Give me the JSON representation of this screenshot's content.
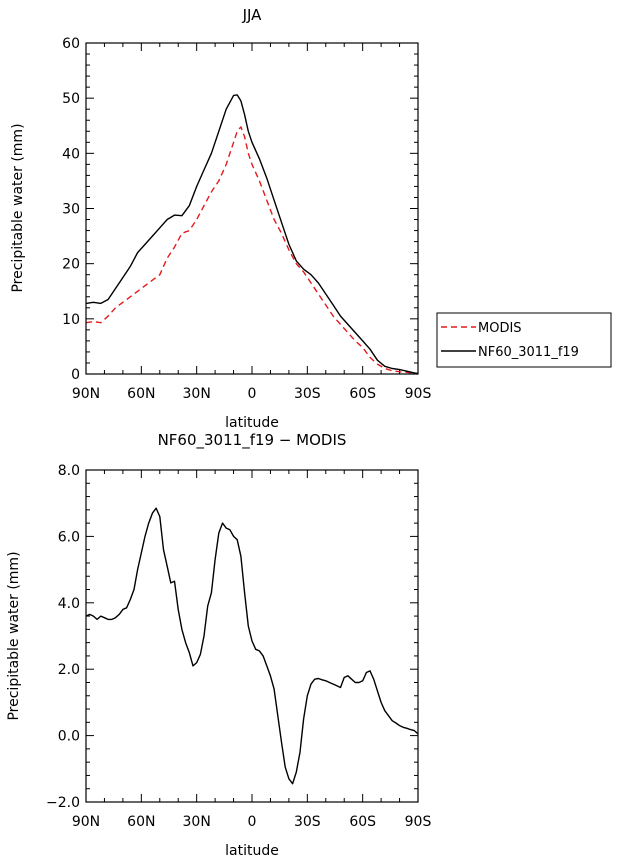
{
  "chart_data": [
    {
      "type": "line",
      "title": "JJA",
      "xlabel": "latitude",
      "ylabel": "Precipitable water (mm)",
      "xlim": [
        90,
        -90
      ],
      "ylim": [
        0,
        60
      ],
      "x_ticks": [
        90,
        60,
        30,
        0,
        -30,
        -60,
        -90
      ],
      "x_tick_labels": [
        "90N",
        "60N",
        "30N",
        "0",
        "30S",
        "60S",
        "90S"
      ],
      "y_ticks": [
        0,
        10,
        20,
        30,
        40,
        50,
        60
      ],
      "y_tick_labels": [
        "0",
        "10",
        "20",
        "30",
        "40",
        "50",
        "60"
      ],
      "legend": {
        "placement": "right, outside plot",
        "entries": [
          "MODIS",
          "NF60_3011_f19"
        ]
      },
      "series": [
        {
          "name": "MODIS",
          "color": "#e41a1c",
          "dash": "dashed",
          "x": [
            90,
            86,
            82,
            78,
            74,
            70,
            66,
            62,
            58,
            54,
            50,
            46,
            42,
            38,
            34,
            30,
            26,
            22,
            18,
            14,
            10,
            8,
            6,
            4,
            2,
            0,
            -4,
            -8,
            -12,
            -16,
            -20,
            -24,
            -28,
            -32,
            -36,
            -40,
            -44,
            -48,
            -52,
            -56,
            -60,
            -64,
            -68,
            -72,
            -76,
            -80,
            -84,
            -88,
            -90
          ],
          "y": [
            9.3,
            9.5,
            9.3,
            10.5,
            12,
            13,
            14,
            15,
            16,
            17,
            18,
            21,
            23,
            25.5,
            26,
            28,
            30.5,
            33,
            35,
            38,
            42,
            44,
            44.8,
            43,
            40,
            38,
            35,
            31.5,
            28,
            25.5,
            22.5,
            20,
            18.5,
            16.5,
            14.5,
            12.5,
            10.5,
            9,
            7.5,
            6,
            4.8,
            3,
            1.8,
            1,
            0.6,
            0.4,
            0.3,
            0.1,
            0
          ]
        },
        {
          "name": "NF60_3011_f19",
          "color": "#000000",
          "dash": "solid",
          "x": [
            90,
            86,
            82,
            78,
            74,
            70,
            66,
            62,
            58,
            54,
            50,
            46,
            42,
            38,
            34,
            30,
            26,
            22,
            18,
            14,
            10,
            8,
            6,
            4,
            2,
            0,
            -4,
            -8,
            -12,
            -16,
            -20,
            -24,
            -28,
            -32,
            -36,
            -40,
            -44,
            -48,
            -52,
            -56,
            -60,
            -64,
            -68,
            -72,
            -76,
            -80,
            -84,
            -88,
            -90
          ],
          "y": [
            12.8,
            13,
            12.8,
            13.5,
            15.5,
            17.5,
            19.5,
            22,
            23.5,
            25,
            26.5,
            28,
            28.8,
            28.7,
            30.5,
            34,
            37,
            40,
            44,
            48,
            50.5,
            50.6,
            49.5,
            47,
            44,
            42,
            39,
            35.5,
            31.5,
            27.5,
            23.5,
            20.5,
            19,
            18,
            16.5,
            14.5,
            12.5,
            10.5,
            9,
            7.5,
            6,
            4.5,
            2.5,
            1.4,
            1,
            0.8,
            0.5,
            0.2,
            0.1
          ]
        }
      ]
    },
    {
      "type": "line",
      "title": "NF60_3011_f19 − MODIS",
      "xlabel": "latitude",
      "ylabel": "Precipitable water (mm)",
      "xlim": [
        90,
        -90
      ],
      "ylim": [
        -2,
        8
      ],
      "x_ticks": [
        90,
        60,
        30,
        0,
        -30,
        -60,
        -90
      ],
      "x_tick_labels": [
        "90N",
        "60N",
        "30N",
        "0",
        "30S",
        "60S",
        "90S"
      ],
      "y_ticks": [
        -2,
        0,
        2,
        4,
        6,
        8
      ],
      "y_tick_labels": [
        "−2.0",
        "0.0",
        "2.0",
        "4.0",
        "6.0",
        "8.0"
      ],
      "series": [
        {
          "name": "NF60_3011_f19 − MODIS",
          "color": "#000000",
          "dash": "solid",
          "x": [
            90,
            88,
            86,
            84,
            82,
            80,
            78,
            76,
            74,
            72,
            70,
            68,
            66,
            64,
            62,
            60,
            58,
            56,
            54,
            52,
            50,
            48,
            46,
            44,
            42,
            40,
            38,
            36,
            34,
            32,
            30,
            28,
            26,
            24,
            22,
            20,
            18,
            16,
            14,
            12,
            10,
            8,
            6,
            4,
            2,
            0,
            -2,
            -4,
            -6,
            -8,
            -10,
            -12,
            -14,
            -16,
            -18,
            -20,
            -22,
            -24,
            -26,
            -28,
            -30,
            -32,
            -34,
            -36,
            -38,
            -40,
            -42,
            -44,
            -46,
            -48,
            -50,
            -52,
            -54,
            -56,
            -58,
            -60,
            -62,
            -64,
            -66,
            -68,
            -70,
            -72,
            -74,
            -76,
            -78,
            -80,
            -82,
            -84,
            -86,
            -88,
            -90
          ],
          "y": [
            3.6,
            3.65,
            3.6,
            3.5,
            3.6,
            3.55,
            3.5,
            3.5,
            3.55,
            3.65,
            3.8,
            3.85,
            4.1,
            4.4,
            5,
            5.5,
            6,
            6.4,
            6.7,
            6.85,
            6.6,
            5.6,
            5.1,
            4.6,
            4.65,
            3.8,
            3.2,
            2.8,
            2.5,
            2.1,
            2.2,
            2.45,
            3,
            3.9,
            4.3,
            5.3,
            6.1,
            6.4,
            6.25,
            6.2,
            6,
            5.9,
            5.4,
            4.3,
            3.3,
            2.85,
            2.6,
            2.55,
            2.4,
            2.1,
            1.8,
            1.4,
            0.6,
            -0.2,
            -0.95,
            -1.3,
            -1.45,
            -1.1,
            -0.5,
            0.5,
            1.2,
            1.55,
            1.7,
            1.72,
            1.68,
            1.65,
            1.6,
            1.55,
            1.5,
            1.45,
            1.75,
            1.8,
            1.7,
            1.6,
            1.6,
            1.65,
            1.9,
            1.95,
            1.7,
            1.35,
            1,
            0.75,
            0.6,
            0.45,
            0.38,
            0.3,
            0.25,
            0.22,
            0.18,
            0.15,
            0.05
          ]
        }
      ]
    }
  ]
}
